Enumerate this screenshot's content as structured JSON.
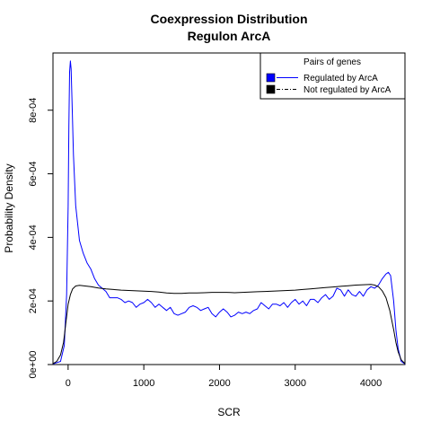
{
  "chart_data": {
    "type": "line",
    "title": "Coexpression Distribution",
    "subtitle": "Regulon ArcA",
    "xlabel": "SCR",
    "ylabel": "Probability Density",
    "xlim": [
      -200,
      4450
    ],
    "ylim": [
      0,
      0.00098
    ],
    "x_ticks": [
      0,
      1000,
      2000,
      3000,
      4000
    ],
    "x_tick_labels": [
      "0",
      "1000",
      "2000",
      "3000",
      "4000"
    ],
    "y_ticks": [
      0,
      0.0002,
      0.0004,
      0.0006,
      0.0008
    ],
    "y_tick_labels": [
      "0e+00",
      "2e-04",
      "4e-04",
      "6e-04",
      "8e-04"
    ],
    "grid": false,
    "legend": {
      "title": "Pairs of genes",
      "placement": "top-right",
      "entries": [
        "Regulated by  ArcA",
        "Not regulated by  ArcA"
      ]
    },
    "series": [
      {
        "color": "#0000ff",
        "x": [
          -200,
          -100,
          -50,
          -20,
          0,
          10,
          20,
          30,
          40,
          50,
          70,
          100,
          150,
          200,
          250,
          300,
          350,
          400,
          450,
          500,
          550,
          600,
          650,
          700,
          750,
          800,
          850,
          900,
          950,
          1000,
          1050,
          1100,
          1150,
          1200,
          1250,
          1300,
          1350,
          1400,
          1450,
          1500,
          1550,
          1600,
          1650,
          1700,
          1750,
          1800,
          1850,
          1900,
          1950,
          2000,
          2050,
          2100,
          2150,
          2200,
          2250,
          2300,
          2350,
          2400,
          2450,
          2500,
          2550,
          2600,
          2650,
          2700,
          2750,
          2800,
          2850,
          2900,
          2950,
          3000,
          3050,
          3100,
          3150,
          3200,
          3250,
          3300,
          3350,
          3400,
          3450,
          3500,
          3550,
          3600,
          3650,
          3700,
          3750,
          3800,
          3850,
          3900,
          3950,
          4000,
          4050,
          4100,
          4150,
          4200,
          4230,
          4260,
          4300,
          4330,
          4360,
          4400,
          4450
        ],
        "y": [
          2e-06,
          1e-05,
          6e-05,
          0.00022,
          0.0005,
          0.00075,
          0.00092,
          0.000955,
          0.00093,
          0.00084,
          0.00066,
          0.0005,
          0.00039,
          0.00035,
          0.00032,
          0.0003,
          0.00027,
          0.00025,
          0.00024,
          0.00023,
          0.00021,
          0.00021,
          0.00021,
          0.000205,
          0.000195,
          0.0002,
          0.000195,
          0.00018,
          0.00019,
          0.000195,
          0.000205,
          0.000195,
          0.00018,
          0.00019,
          0.00018,
          0.00017,
          0.00018,
          0.00016,
          0.000155,
          0.00016,
          0.000165,
          0.00018,
          0.000185,
          0.00018,
          0.00017,
          0.000175,
          0.00018,
          0.00016,
          0.00015,
          0.000165,
          0.000175,
          0.000165,
          0.00015,
          0.000155,
          0.000165,
          0.00016,
          0.000165,
          0.00016,
          0.00017,
          0.000175,
          0.000195,
          0.000185,
          0.000175,
          0.00019,
          0.00019,
          0.000185,
          0.000195,
          0.00018,
          0.000195,
          0.000205,
          0.00019,
          0.0002,
          0.000185,
          0.000205,
          0.000205,
          0.000195,
          0.00021,
          0.00022,
          0.000205,
          0.000215,
          0.00024,
          0.000235,
          0.000215,
          0.000235,
          0.00022,
          0.000215,
          0.00023,
          0.000215,
          0.000235,
          0.000245,
          0.00024,
          0.00025,
          0.00027,
          0.000285,
          0.00029,
          0.00028,
          0.0002,
          0.00011,
          5e-05,
          1e-05,
          2e-06
        ]
      },
      {
        "color": "#000000",
        "x": [
          -200,
          -150,
          -100,
          -60,
          -30,
          0,
          30,
          60,
          100,
          150,
          200,
          300,
          400,
          500,
          600,
          700,
          800,
          900,
          1000,
          1100,
          1200,
          1300,
          1400,
          1500,
          1600,
          1700,
          1800,
          1900,
          2000,
          2100,
          2200,
          2300,
          2400,
          2500,
          2600,
          2700,
          2800,
          2900,
          3000,
          3100,
          3200,
          3300,
          3400,
          3500,
          3600,
          3700,
          3800,
          3900,
          4000,
          4050,
          4100,
          4150,
          4200,
          4250,
          4300,
          4330,
          4360,
          4400,
          4450
        ],
        "y": [
          3e-06,
          1e-05,
          3e-05,
          7e-05,
          0.00013,
          0.00019,
          0.00022,
          0.000238,
          0.000247,
          0.000249,
          0.000248,
          0.000245,
          0.000241,
          0.000238,
          0.000236,
          0.000234,
          0.000233,
          0.000232,
          0.000231,
          0.00023,
          0.000228,
          0.000225,
          0.000224,
          0.000224,
          0.000225,
          0.000225,
          0.000226,
          0.000227,
          0.000227,
          0.000227,
          0.000226,
          0.000227,
          0.000228,
          0.000229,
          0.00023,
          0.000231,
          0.000232,
          0.000233,
          0.000234,
          0.000236,
          0.000238,
          0.00024,
          0.000242,
          0.000244,
          0.000246,
          0.000248,
          0.00025,
          0.000251,
          0.000252,
          0.00025,
          0.000245,
          0.000232,
          0.00021,
          0.00017,
          0.00011,
          7e-05,
          4e-05,
          1.5e-05,
          3e-06
        ]
      }
    ]
  }
}
